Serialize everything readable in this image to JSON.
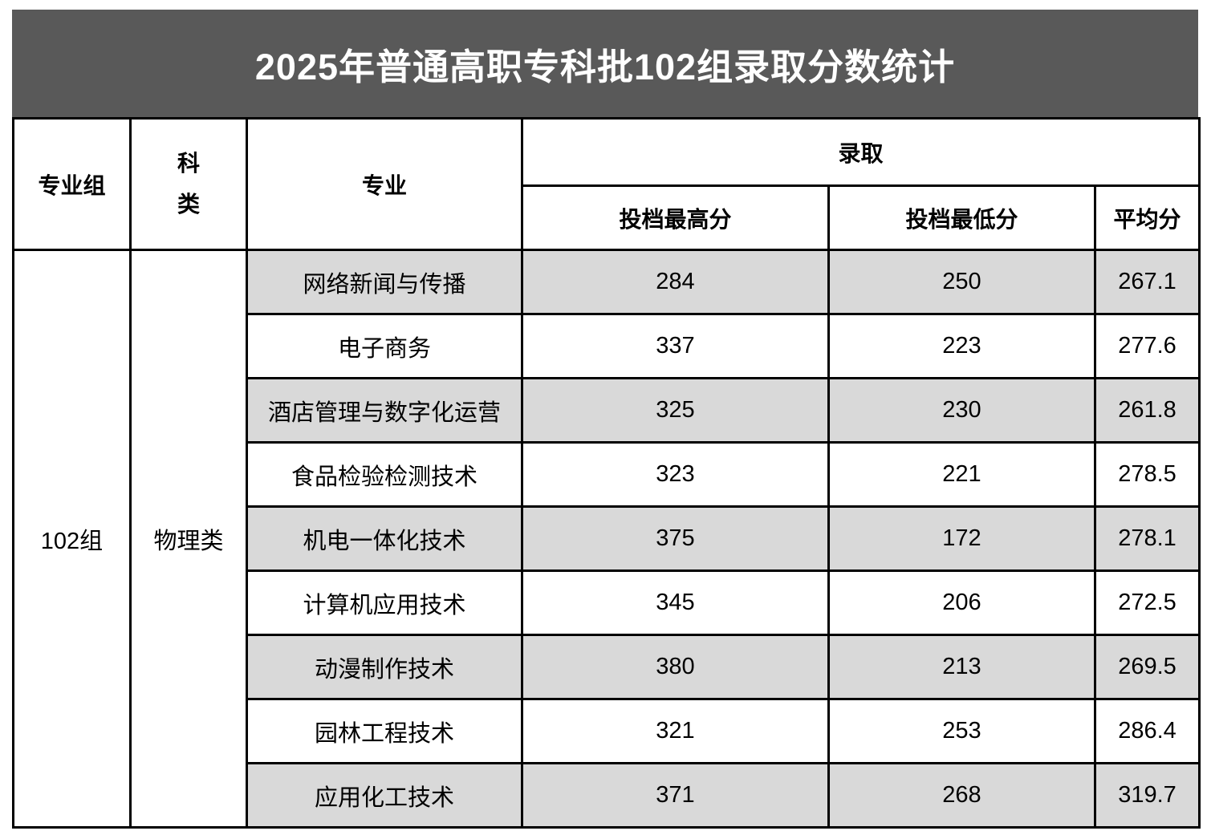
{
  "chart_data": {
    "type": "table",
    "title": "2025年普通高职专科批102组录取分数统计",
    "header": {
      "group": "专业组",
      "category": "科类",
      "major": "专业",
      "admission_group": "录取",
      "max": "投档最高分",
      "min": "投档最低分",
      "avg": "平均分"
    },
    "merged": {
      "group_value": "102组",
      "category_value": "物理类"
    },
    "rows": [
      {
        "major": "网络新闻与传播",
        "max": 284,
        "min": 250,
        "avg": "267.1"
      },
      {
        "major": "电子商务",
        "max": 337,
        "min": 223,
        "avg": "277.6"
      },
      {
        "major": "酒店管理与数字化运营",
        "max": 325,
        "min": 230,
        "avg": "261.8"
      },
      {
        "major": "食品检验检测技术",
        "max": 323,
        "min": 221,
        "avg": "278.5"
      },
      {
        "major": "机电一体化技术",
        "max": 375,
        "min": 172,
        "avg": "278.1"
      },
      {
        "major": "计算机应用技术",
        "max": 345,
        "min": 206,
        "avg": "272.5"
      },
      {
        "major": "动漫制作技术",
        "max": 380,
        "min": 213,
        "avg": "269.5"
      },
      {
        "major": "园林工程技术",
        "max": 321,
        "min": 253,
        "avg": "286.4"
      },
      {
        "major": "应用化工技术",
        "max": 371,
        "min": 268,
        "avg": "319.7"
      }
    ],
    "layout_hints": {
      "striped_row_indices": [
        0,
        2,
        4,
        6,
        8
      ],
      "columns_order": [
        "专业组",
        "科类",
        "专业",
        "投档最高分",
        "投档最低分",
        "平均分"
      ]
    }
  },
  "colors": {
    "title_band_bg": "#595959",
    "title_text": "#ffffff",
    "stripe_bg": "#d9d9d9",
    "border": "#000000"
  }
}
